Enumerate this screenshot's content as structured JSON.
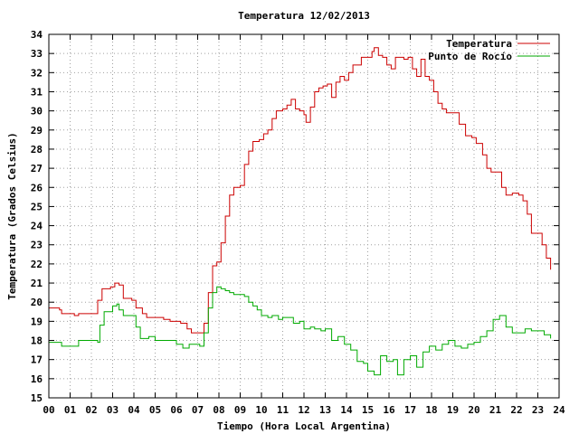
{
  "chart_data": {
    "type": "line",
    "title": "Temperatura 12/02/2013",
    "xlabel": "Tiempo (Hora Local Argentina)",
    "ylabel": "Temperatura (Grados Celsius)",
    "xlim": [
      0,
      24
    ],
    "ylim": [
      15,
      34
    ],
    "grid": true,
    "legend_position": "top-right",
    "x_ticks": [
      "00",
      "01",
      "02",
      "03",
      "04",
      "05",
      "06",
      "07",
      "08",
      "09",
      "10",
      "11",
      "12",
      "13",
      "14",
      "15",
      "16",
      "17",
      "18",
      "19",
      "20",
      "21",
      "22",
      "23",
      "24"
    ],
    "y_ticks": [
      15,
      16,
      17,
      18,
      19,
      20,
      21,
      22,
      23,
      24,
      25,
      26,
      27,
      28,
      29,
      30,
      31,
      32,
      33,
      34
    ],
    "series": [
      {
        "name": "Temperatura",
        "color": "#cc0000",
        "points": [
          [
            0.0,
            19.7
          ],
          [
            0.5,
            19.6
          ],
          [
            0.6,
            19.4
          ],
          [
            1.2,
            19.3
          ],
          [
            1.4,
            19.4
          ],
          [
            2.2,
            19.4
          ],
          [
            2.3,
            20.1
          ],
          [
            2.5,
            20.7
          ],
          [
            2.9,
            20.8
          ],
          [
            3.1,
            21.0
          ],
          [
            3.3,
            20.9
          ],
          [
            3.5,
            20.2
          ],
          [
            3.9,
            20.1
          ],
          [
            4.1,
            19.7
          ],
          [
            4.4,
            19.4
          ],
          [
            4.6,
            19.2
          ],
          [
            5.0,
            19.2
          ],
          [
            5.4,
            19.1
          ],
          [
            5.7,
            19.0
          ],
          [
            6.2,
            18.9
          ],
          [
            6.5,
            18.6
          ],
          [
            6.7,
            18.4
          ],
          [
            7.1,
            18.4
          ],
          [
            7.3,
            18.9
          ],
          [
            7.5,
            20.5
          ],
          [
            7.7,
            21.9
          ],
          [
            7.9,
            22.1
          ],
          [
            8.1,
            23.1
          ],
          [
            8.3,
            24.5
          ],
          [
            8.5,
            25.6
          ],
          [
            8.7,
            26.0
          ],
          [
            9.0,
            26.1
          ],
          [
            9.2,
            27.2
          ],
          [
            9.4,
            27.9
          ],
          [
            9.6,
            28.4
          ],
          [
            9.9,
            28.5
          ],
          [
            10.1,
            28.8
          ],
          [
            10.3,
            29.0
          ],
          [
            10.5,
            29.6
          ],
          [
            10.7,
            30.0
          ],
          [
            11.0,
            30.1
          ],
          [
            11.2,
            30.3
          ],
          [
            11.4,
            30.6
          ],
          [
            11.6,
            30.1
          ],
          [
            11.8,
            30.0
          ],
          [
            12.0,
            29.8
          ],
          [
            12.1,
            29.4
          ],
          [
            12.3,
            30.2
          ],
          [
            12.5,
            31.0
          ],
          [
            12.7,
            31.2
          ],
          [
            12.9,
            31.3
          ],
          [
            13.1,
            31.4
          ],
          [
            13.3,
            30.7
          ],
          [
            13.5,
            31.5
          ],
          [
            13.7,
            31.8
          ],
          [
            13.9,
            31.6
          ],
          [
            14.1,
            32.0
          ],
          [
            14.3,
            32.4
          ],
          [
            14.5,
            32.4
          ],
          [
            14.7,
            32.8
          ],
          [
            15.0,
            32.8
          ],
          [
            15.2,
            33.1
          ],
          [
            15.3,
            33.3
          ],
          [
            15.5,
            32.9
          ],
          [
            15.7,
            32.8
          ],
          [
            15.9,
            32.4
          ],
          [
            16.1,
            32.2
          ],
          [
            16.3,
            32.8
          ],
          [
            16.5,
            32.8
          ],
          [
            16.7,
            32.7
          ],
          [
            16.9,
            32.8
          ],
          [
            17.1,
            32.2
          ],
          [
            17.3,
            31.8
          ],
          [
            17.5,
            32.7
          ],
          [
            17.7,
            31.8
          ],
          [
            17.9,
            31.6
          ],
          [
            18.1,
            31.0
          ],
          [
            18.3,
            30.4
          ],
          [
            18.5,
            30.1
          ],
          [
            18.7,
            29.9
          ],
          [
            19.0,
            29.9
          ],
          [
            19.3,
            29.3
          ],
          [
            19.6,
            28.7
          ],
          [
            19.9,
            28.6
          ],
          [
            20.1,
            28.3
          ],
          [
            20.4,
            27.7
          ],
          [
            20.6,
            27.0
          ],
          [
            20.8,
            26.8
          ],
          [
            21.1,
            26.8
          ],
          [
            21.3,
            26.0
          ],
          [
            21.5,
            25.6
          ],
          [
            21.8,
            25.7
          ],
          [
            22.1,
            25.6
          ],
          [
            22.3,
            25.3
          ],
          [
            22.5,
            24.6
          ],
          [
            22.7,
            23.6
          ],
          [
            23.0,
            23.6
          ],
          [
            23.2,
            23.0
          ],
          [
            23.4,
            22.3
          ],
          [
            23.6,
            21.7
          ]
        ]
      },
      {
        "name": "Punto de Rocío",
        "color": "#00aa00",
        "points": [
          [
            0.0,
            17.9
          ],
          [
            0.5,
            17.9
          ],
          [
            0.6,
            17.7
          ],
          [
            1.3,
            17.7
          ],
          [
            1.4,
            18.0
          ],
          [
            2.2,
            18.0
          ],
          [
            2.3,
            17.9
          ],
          [
            2.4,
            18.8
          ],
          [
            2.6,
            19.5
          ],
          [
            3.0,
            19.8
          ],
          [
            3.2,
            19.9
          ],
          [
            3.3,
            19.6
          ],
          [
            3.5,
            19.3
          ],
          [
            3.9,
            19.3
          ],
          [
            4.1,
            18.7
          ],
          [
            4.3,
            18.1
          ],
          [
            4.7,
            18.2
          ],
          [
            5.0,
            18.0
          ],
          [
            5.8,
            18.0
          ],
          [
            6.0,
            17.8
          ],
          [
            6.3,
            17.6
          ],
          [
            6.6,
            17.8
          ],
          [
            7.1,
            17.7
          ],
          [
            7.3,
            18.4
          ],
          [
            7.5,
            19.7
          ],
          [
            7.7,
            20.5
          ],
          [
            7.9,
            20.8
          ],
          [
            8.1,
            20.7
          ],
          [
            8.3,
            20.6
          ],
          [
            8.5,
            20.5
          ],
          [
            8.7,
            20.4
          ],
          [
            9.0,
            20.4
          ],
          [
            9.2,
            20.3
          ],
          [
            9.4,
            20.0
          ],
          [
            9.6,
            19.8
          ],
          [
            9.8,
            19.6
          ],
          [
            10.0,
            19.3
          ],
          [
            10.3,
            19.2
          ],
          [
            10.5,
            19.3
          ],
          [
            10.8,
            19.1
          ],
          [
            11.0,
            19.2
          ],
          [
            11.3,
            19.2
          ],
          [
            11.5,
            18.9
          ],
          [
            11.8,
            19.0
          ],
          [
            12.0,
            18.6
          ],
          [
            12.3,
            18.7
          ],
          [
            12.5,
            18.6
          ],
          [
            12.8,
            18.5
          ],
          [
            13.0,
            18.6
          ],
          [
            13.3,
            18.0
          ],
          [
            13.6,
            18.2
          ],
          [
            13.9,
            17.8
          ],
          [
            14.2,
            17.5
          ],
          [
            14.5,
            16.9
          ],
          [
            14.8,
            16.8
          ],
          [
            15.0,
            16.4
          ],
          [
            15.3,
            16.2
          ],
          [
            15.6,
            17.2
          ],
          [
            15.9,
            16.9
          ],
          [
            16.2,
            17.0
          ],
          [
            16.4,
            16.2
          ],
          [
            16.7,
            17.0
          ],
          [
            17.0,
            17.2
          ],
          [
            17.3,
            16.6
          ],
          [
            17.6,
            17.4
          ],
          [
            17.9,
            17.7
          ],
          [
            18.2,
            17.5
          ],
          [
            18.5,
            17.8
          ],
          [
            18.8,
            18.0
          ],
          [
            19.1,
            17.7
          ],
          [
            19.4,
            17.6
          ],
          [
            19.7,
            17.8
          ],
          [
            20.0,
            17.9
          ],
          [
            20.3,
            18.2
          ],
          [
            20.6,
            18.5
          ],
          [
            20.9,
            19.1
          ],
          [
            21.2,
            19.3
          ],
          [
            21.5,
            18.7
          ],
          [
            21.8,
            18.4
          ],
          [
            22.1,
            18.4
          ],
          [
            22.4,
            18.6
          ],
          [
            22.7,
            18.5
          ],
          [
            23.0,
            18.5
          ],
          [
            23.3,
            18.3
          ],
          [
            23.6,
            18.1
          ]
        ]
      }
    ]
  }
}
